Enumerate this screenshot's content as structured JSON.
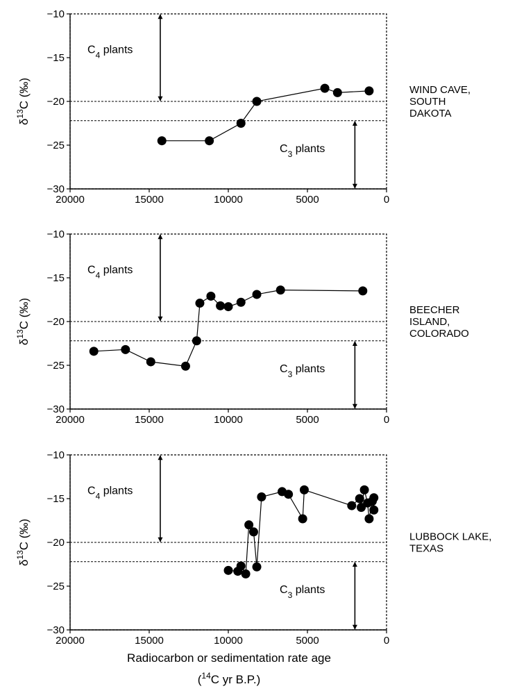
{
  "xlabel": "Radiocarbon or sedimentation rate age",
  "xlabel_sub": {
    "open": "(",
    "sup": "14",
    "rest": "C yr B.P.)"
  },
  "ylabel": {
    "delta": "δ",
    "sup": "13",
    "rest": "C (‰)"
  },
  "band_labels": {
    "c4": {
      "main": "C",
      "sub": "4",
      "rest": " plants"
    },
    "c3": {
      "main": "C",
      "sub": "3",
      "rest": " plants"
    }
  },
  "chart_data": [
    {
      "type": "line",
      "site": [
        "WIND CAVE,",
        "SOUTH",
        "DAKOTA"
      ],
      "xlim": [
        20000,
        0
      ],
      "ylim": [
        -30,
        -10
      ],
      "xticks": [
        "20000",
        "15000",
        "10000",
        "5000",
        "0"
      ],
      "yticks": [
        "−10",
        "−15",
        "−20",
        "−25",
        "−30"
      ],
      "reference_lines": [
        -20,
        -22.2
      ],
      "c4_arrow": {
        "x": 14300,
        "from": -10,
        "to": -20
      },
      "c3_arrow": {
        "x": 2000,
        "from": -22.2,
        "to": -30
      },
      "points": [
        [
          14200,
          -24.5
        ],
        [
          11200,
          -24.5
        ],
        [
          9200,
          -22.5
        ],
        [
          8200,
          -20.0
        ],
        [
          3900,
          -18.5
        ],
        [
          3100,
          -19.0
        ],
        [
          1100,
          -18.8
        ]
      ]
    },
    {
      "type": "line",
      "site": [
        "BEECHER",
        "ISLAND,",
        "COLORADO"
      ],
      "xlim": [
        20000,
        0
      ],
      "ylim": [
        -30,
        -10
      ],
      "xticks": [
        "20000",
        "15000",
        "10000",
        "5000",
        "0"
      ],
      "yticks": [
        "−10",
        "−15",
        "−20",
        "−25",
        "−30"
      ],
      "reference_lines": [
        -20,
        -22.2
      ],
      "c4_arrow": {
        "x": 14300,
        "from": -10,
        "to": -20
      },
      "c3_arrow": {
        "x": 2000,
        "from": -22.2,
        "to": -30
      },
      "points": [
        [
          18500,
          -23.4
        ],
        [
          16500,
          -23.2
        ],
        [
          14900,
          -24.6
        ],
        [
          12700,
          -25.1
        ],
        [
          12000,
          -22.2
        ],
        [
          11800,
          -17.9
        ],
        [
          11100,
          -17.1
        ],
        [
          10500,
          -18.2
        ],
        [
          10000,
          -18.3
        ],
        [
          9200,
          -17.8
        ],
        [
          8200,
          -16.9
        ],
        [
          6700,
          -16.4
        ],
        [
          1500,
          -16.5
        ]
      ]
    },
    {
      "type": "line",
      "site": [
        "LUBBOCK LAKE,",
        "TEXAS"
      ],
      "xlim": [
        20000,
        0
      ],
      "ylim": [
        -30,
        -10
      ],
      "xticks": [
        "20000",
        "15000",
        "10000",
        "5000",
        "0"
      ],
      "yticks": [
        "−10",
        "−15",
        "−20",
        "−25",
        "−30"
      ],
      "reference_lines": [
        -20,
        -22.2
      ],
      "c4_arrow": {
        "x": 14300,
        "from": -10,
        "to": -20
      },
      "c3_arrow": {
        "x": 2000,
        "from": -22.2,
        "to": -30
      },
      "points": [
        [
          10000,
          -23.2
        ],
        [
          9400,
          -23.3
        ],
        [
          9200,
          -22.7
        ],
        [
          8900,
          -23.6
        ],
        [
          8700,
          -18.0
        ],
        [
          8400,
          -18.8
        ],
        [
          8200,
          -22.8
        ],
        [
          7900,
          -14.8
        ],
        [
          6600,
          -14.2
        ],
        [
          6200,
          -14.5
        ],
        [
          5300,
          -17.3
        ],
        [
          5200,
          -14.0
        ],
        [
          2200,
          -15.8
        ],
        [
          1700,
          -15.0
        ],
        [
          1600,
          -16.0
        ],
        [
          1400,
          -14.0
        ],
        [
          1200,
          -15.5
        ],
        [
          1100,
          -17.3
        ],
        [
          900,
          -15.3
        ],
        [
          800,
          -16.3
        ],
        [
          800,
          -14.9
        ]
      ]
    }
  ]
}
